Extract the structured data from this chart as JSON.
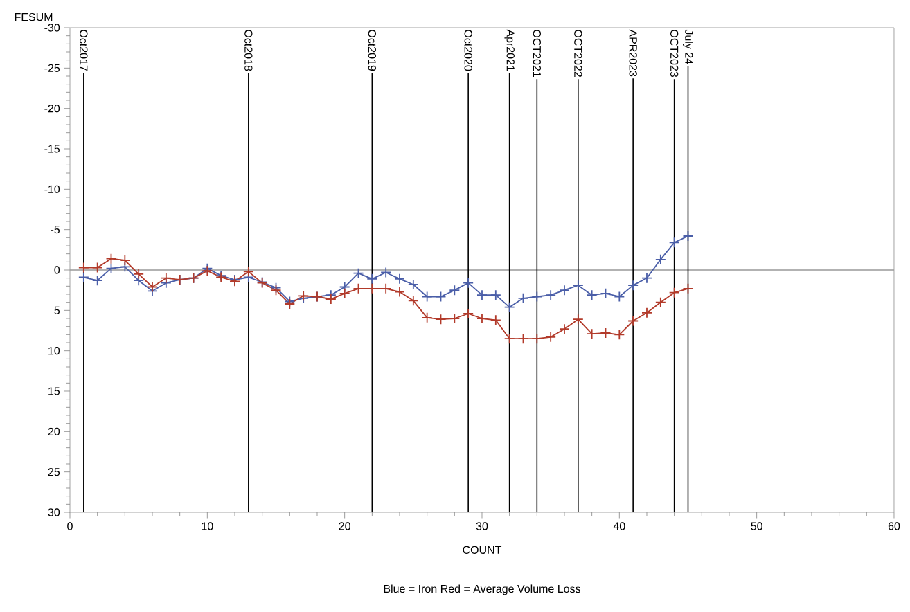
{
  "chart_data": {
    "type": "line",
    "xlabel": "COUNT",
    "ylabel": "FESUM",
    "x": [
      1,
      2,
      3,
      4,
      5,
      6,
      7,
      8,
      9,
      10,
      11,
      12,
      13,
      14,
      15,
      16,
      17,
      18,
      19,
      20,
      21,
      22,
      23,
      24,
      25,
      26,
      27,
      28,
      29,
      30,
      31,
      32,
      33,
      34,
      35,
      36,
      37,
      38,
      39,
      40,
      41,
      42,
      43,
      44,
      45
    ],
    "series": [
      {
        "color": "#4a5ea8",
        "values": [
          0.9,
          1.3,
          -0.2,
          -0.4,
          1.3,
          2.6,
          1.6,
          1.2,
          1.0,
          -0.2,
          0.7,
          1.2,
          0.9,
          1.5,
          2.2,
          3.9,
          3.5,
          3.3,
          3.1,
          2.1,
          0.4,
          1.1,
          0.3,
          1.1,
          1.8,
          3.3,
          3.3,
          2.5,
          1.6,
          3.1,
          3.1,
          4.6,
          3.5,
          3.3,
          3.1,
          2.5,
          1.9,
          3.1,
          2.9,
          3.3,
          1.9,
          1.0,
          -1.3,
          -3.4,
          -4.2
        ]
      },
      {
        "color": "#b23a2a",
        "values": [
          -0.3,
          -0.3,
          -1.4,
          -1.2,
          0.5,
          2.1,
          1.0,
          1.2,
          1.0,
          0.1,
          0.9,
          1.4,
          0.2,
          1.6,
          2.5,
          4.2,
          3.2,
          3.3,
          3.6,
          2.9,
          2.3,
          2.3,
          2.3,
          2.7,
          3.8,
          5.9,
          6.1,
          6.0,
          5.4,
          6.0,
          6.2,
          8.5,
          8.5,
          8.5,
          8.3,
          7.3,
          6.1,
          7.9,
          7.8,
          8.0,
          6.3,
          5.3,
          4.0,
          2.8,
          2.3
        ]
      }
    ],
    "marker": "cross",
    "grid": false,
    "xlim": [
      0,
      60
    ],
    "xticks": [
      0,
      10,
      20,
      30,
      40,
      50,
      60
    ],
    "ylim": [
      30,
      -30
    ],
    "yticks": [
      -30,
      -25,
      -20,
      -15,
      -10,
      -5,
      0,
      5,
      10,
      15,
      20,
      25,
      30
    ],
    "ref_lines": [
      {
        "axis": "y",
        "value": 0,
        "color": "#999999"
      },
      {
        "axis": "x",
        "value": 1,
        "label": "Oct2017",
        "color": "#000000"
      },
      {
        "axis": "x",
        "value": 13,
        "label": "Oct2018",
        "color": "#000000"
      },
      {
        "axis": "x",
        "value": 22,
        "label": "Oct2019",
        "color": "#000000"
      },
      {
        "axis": "x",
        "value": 29,
        "label": "Oct2020",
        "color": "#000000"
      },
      {
        "axis": "x",
        "value": 32,
        "label": "Apr2021",
        "color": "#000000"
      },
      {
        "axis": "x",
        "value": 34,
        "label": "OCT2021",
        "color": "#000000"
      },
      {
        "axis": "x",
        "value": 37,
        "label": "OCT2022",
        "color": "#000000"
      },
      {
        "axis": "x",
        "value": 41,
        "label": "APR2023",
        "color": "#000000"
      },
      {
        "axis": "x",
        "value": 44,
        "label": "OCT2023",
        "color": "#000000"
      },
      {
        "axis": "x",
        "value": 45,
        "label": "July 24",
        "color": "#000000"
      }
    ],
    "annotations": [
      "Blue = Iron  Red = Average Volume Loss"
    ]
  }
}
